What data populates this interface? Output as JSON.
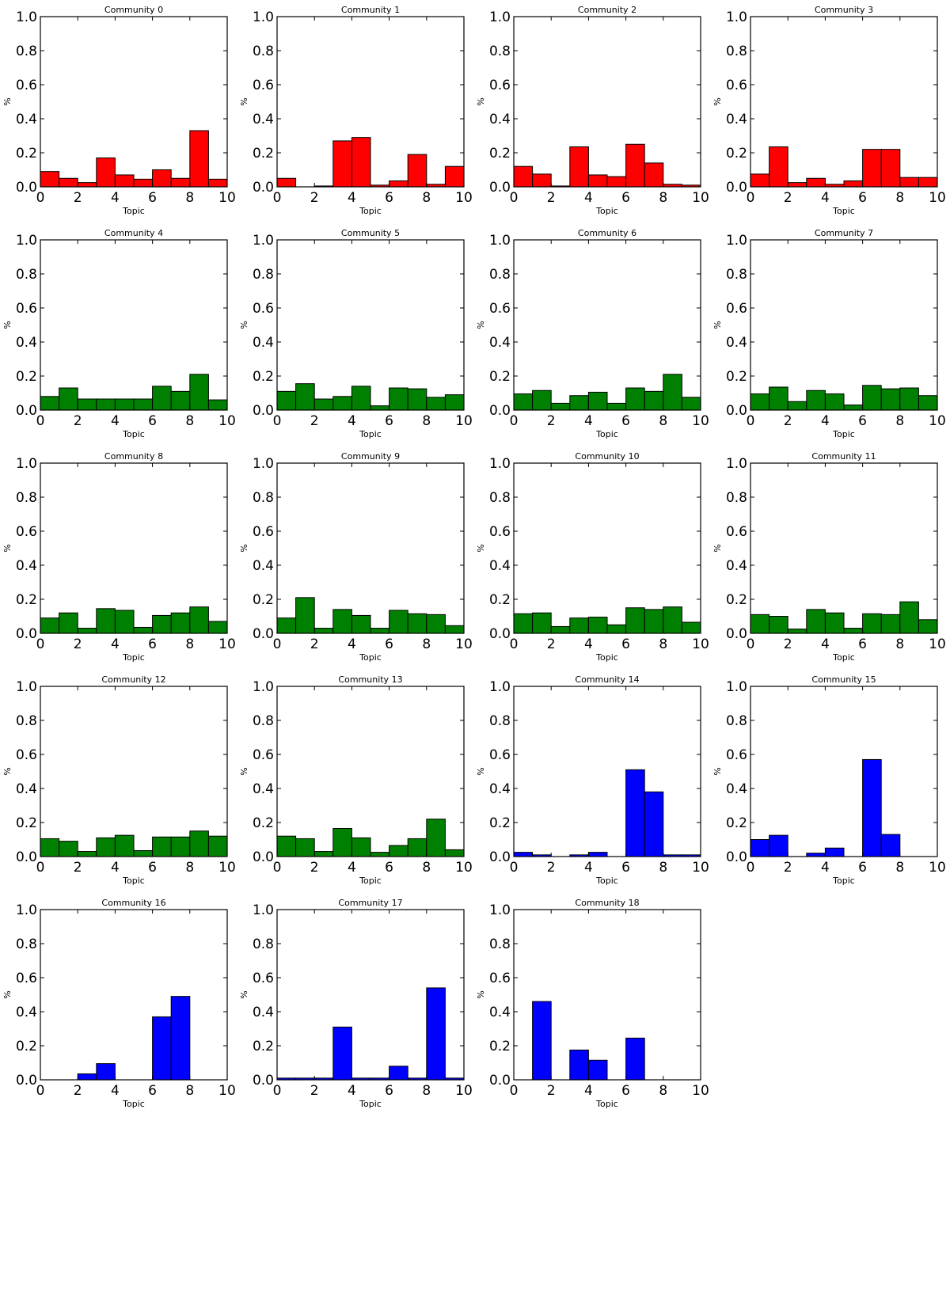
{
  "colors": {
    "red": "#ff0000",
    "green": "#008000",
    "blue": "#0000ff",
    "edge": "#000000"
  },
  "chart_data": [
    {
      "type": "bar",
      "title": "Community 0",
      "xlabel": "Topic",
      "ylabel": "%",
      "xlim": [
        0,
        10
      ],
      "ylim": [
        0,
        1
      ],
      "xticks": [
        "0",
        "2",
        "4",
        "6",
        "8",
        "10"
      ],
      "yticks": [
        "0.0",
        "0.2",
        "0.4",
        "0.6",
        "0.8",
        "1.0"
      ],
      "color": "red",
      "categories": [
        0,
        1,
        2,
        3,
        4,
        5,
        6,
        7,
        8,
        9
      ],
      "values": [
        0.09,
        0.05,
        0.025,
        0.17,
        0.07,
        0.045,
        0.1,
        0.05,
        0.33,
        0.045
      ]
    },
    {
      "type": "bar",
      "title": "Community 1",
      "xlabel": "Topic",
      "ylabel": "%",
      "xlim": [
        0,
        10
      ],
      "ylim": [
        0,
        1
      ],
      "xticks": [
        "0",
        "2",
        "4",
        "6",
        "8",
        "10"
      ],
      "yticks": [
        "0.0",
        "0.2",
        "0.4",
        "0.6",
        "0.8",
        "1.0"
      ],
      "color": "red",
      "categories": [
        0,
        1,
        2,
        3,
        4,
        5,
        6,
        7,
        8,
        9
      ],
      "values": [
        0.05,
        0.0,
        0.005,
        0.27,
        0.29,
        0.01,
        0.035,
        0.19,
        0.015,
        0.12
      ]
    },
    {
      "type": "bar",
      "title": "Community 2",
      "xlabel": "Topic",
      "ylabel": "%",
      "xlim": [
        0,
        10
      ],
      "ylim": [
        0,
        1
      ],
      "xticks": [
        "0",
        "2",
        "4",
        "6",
        "8",
        "10"
      ],
      "yticks": [
        "0.0",
        "0.2",
        "0.4",
        "0.6",
        "0.8",
        "1.0"
      ],
      "color": "red",
      "categories": [
        0,
        1,
        2,
        3,
        4,
        5,
        6,
        7,
        8,
        9
      ],
      "values": [
        0.12,
        0.075,
        0.005,
        0.235,
        0.07,
        0.06,
        0.25,
        0.14,
        0.015,
        0.01
      ]
    },
    {
      "type": "bar",
      "title": "Community 3",
      "xlabel": "Topic",
      "ylabel": "%",
      "xlim": [
        0,
        10
      ],
      "ylim": [
        0,
        1
      ],
      "xticks": [
        "0",
        "2",
        "4",
        "6",
        "8",
        "10"
      ],
      "yticks": [
        "0.0",
        "0.2",
        "0.4",
        "0.6",
        "0.8",
        "1.0"
      ],
      "color": "red",
      "categories": [
        0,
        1,
        2,
        3,
        4,
        5,
        6,
        7,
        8,
        9
      ],
      "values": [
        0.075,
        0.235,
        0.025,
        0.05,
        0.015,
        0.035,
        0.22,
        0.22,
        0.055,
        0.055
      ]
    },
    {
      "type": "bar",
      "title": "Community 4",
      "xlabel": "Topic",
      "ylabel": "%",
      "xlim": [
        0,
        10
      ],
      "ylim": [
        0,
        1
      ],
      "xticks": [
        "0",
        "2",
        "4",
        "6",
        "8",
        "10"
      ],
      "yticks": [
        "0.0",
        "0.2",
        "0.4",
        "0.6",
        "0.8",
        "1.0"
      ],
      "color": "green",
      "categories": [
        0,
        1,
        2,
        3,
        4,
        5,
        6,
        7,
        8,
        9
      ],
      "values": [
        0.08,
        0.13,
        0.065,
        0.065,
        0.065,
        0.065,
        0.14,
        0.11,
        0.21,
        0.06
      ]
    },
    {
      "type": "bar",
      "title": "Community 5",
      "xlabel": "Topic",
      "ylabel": "%",
      "xlim": [
        0,
        10
      ],
      "ylim": [
        0,
        1
      ],
      "xticks": [
        "0",
        "2",
        "4",
        "6",
        "8",
        "10"
      ],
      "yticks": [
        "0.0",
        "0.2",
        "0.4",
        "0.6",
        "0.8",
        "1.0"
      ],
      "color": "green",
      "categories": [
        0,
        1,
        2,
        3,
        4,
        5,
        6,
        7,
        8,
        9
      ],
      "values": [
        0.11,
        0.155,
        0.065,
        0.08,
        0.14,
        0.025,
        0.13,
        0.125,
        0.075,
        0.09
      ]
    },
    {
      "type": "bar",
      "title": "Community 6",
      "xlabel": "Topic",
      "ylabel": "%",
      "xlim": [
        0,
        10
      ],
      "ylim": [
        0,
        1
      ],
      "xticks": [
        "0",
        "2",
        "4",
        "6",
        "8",
        "10"
      ],
      "yticks": [
        "0.0",
        "0.2",
        "0.4",
        "0.6",
        "0.8",
        "1.0"
      ],
      "color": "green",
      "categories": [
        0,
        1,
        2,
        3,
        4,
        5,
        6,
        7,
        8,
        9
      ],
      "values": [
        0.095,
        0.115,
        0.04,
        0.085,
        0.105,
        0.04,
        0.13,
        0.11,
        0.21,
        0.075
      ]
    },
    {
      "type": "bar",
      "title": "Community 7",
      "xlabel": "Topic",
      "ylabel": "%",
      "xlim": [
        0,
        10
      ],
      "ylim": [
        0,
        1
      ],
      "xticks": [
        "0",
        "2",
        "4",
        "6",
        "8",
        "10"
      ],
      "yticks": [
        "0.0",
        "0.2",
        "0.4",
        "0.6",
        "0.8",
        "1.0"
      ],
      "color": "green",
      "categories": [
        0,
        1,
        2,
        3,
        4,
        5,
        6,
        7,
        8,
        9
      ],
      "values": [
        0.095,
        0.135,
        0.05,
        0.115,
        0.095,
        0.03,
        0.145,
        0.125,
        0.13,
        0.085
      ]
    },
    {
      "type": "bar",
      "title": "Community 8",
      "xlabel": "Topic",
      "ylabel": "%",
      "xlim": [
        0,
        10
      ],
      "ylim": [
        0,
        1
      ],
      "xticks": [
        "0",
        "2",
        "4",
        "6",
        "8",
        "10"
      ],
      "yticks": [
        "0.0",
        "0.2",
        "0.4",
        "0.6",
        "0.8",
        "1.0"
      ],
      "color": "green",
      "categories": [
        0,
        1,
        2,
        3,
        4,
        5,
        6,
        7,
        8,
        9
      ],
      "values": [
        0.09,
        0.12,
        0.03,
        0.145,
        0.135,
        0.035,
        0.105,
        0.12,
        0.155,
        0.07
      ]
    },
    {
      "type": "bar",
      "title": "Community 9",
      "xlabel": "Topic",
      "ylabel": "%",
      "xlim": [
        0,
        10
      ],
      "ylim": [
        0,
        1
      ],
      "xticks": [
        "0",
        "2",
        "4",
        "6",
        "8",
        "10"
      ],
      "yticks": [
        "0.0",
        "0.2",
        "0.4",
        "0.6",
        "0.8",
        "1.0"
      ],
      "color": "green",
      "categories": [
        0,
        1,
        2,
        3,
        4,
        5,
        6,
        7,
        8,
        9
      ],
      "values": [
        0.09,
        0.21,
        0.03,
        0.14,
        0.105,
        0.03,
        0.135,
        0.115,
        0.11,
        0.045
      ]
    },
    {
      "type": "bar",
      "title": "Community 10",
      "xlabel": "Topic",
      "ylabel": "%",
      "xlim": [
        0,
        10
      ],
      "ylim": [
        0,
        1
      ],
      "xticks": [
        "0",
        "2",
        "4",
        "6",
        "8",
        "10"
      ],
      "yticks": [
        "0.0",
        "0.2",
        "0.4",
        "0.6",
        "0.8",
        "1.0"
      ],
      "color": "green",
      "categories": [
        0,
        1,
        2,
        3,
        4,
        5,
        6,
        7,
        8,
        9
      ],
      "values": [
        0.115,
        0.12,
        0.04,
        0.09,
        0.095,
        0.05,
        0.15,
        0.14,
        0.155,
        0.065
      ]
    },
    {
      "type": "bar",
      "title": "Community 11",
      "xlabel": "Topic",
      "ylabel": "%",
      "xlim": [
        0,
        10
      ],
      "ylim": [
        0,
        1
      ],
      "xticks": [
        "0",
        "2",
        "4",
        "6",
        "8",
        "10"
      ],
      "yticks": [
        "0.0",
        "0.2",
        "0.4",
        "0.6",
        "0.8",
        "1.0"
      ],
      "color": "green",
      "categories": [
        0,
        1,
        2,
        3,
        4,
        5,
        6,
        7,
        8,
        9
      ],
      "values": [
        0.11,
        0.1,
        0.025,
        0.14,
        0.12,
        0.03,
        0.115,
        0.11,
        0.185,
        0.08
      ]
    },
    {
      "type": "bar",
      "title": "Community 12",
      "xlabel": "Topic",
      "ylabel": "%",
      "xlim": [
        0,
        10
      ],
      "ylim": [
        0,
        1
      ],
      "xticks": [
        "0",
        "2",
        "4",
        "6",
        "8",
        "10"
      ],
      "yticks": [
        "0.0",
        "0.2",
        "0.4",
        "0.6",
        "0.8",
        "1.0"
      ],
      "color": "green",
      "categories": [
        0,
        1,
        2,
        3,
        4,
        5,
        6,
        7,
        8,
        9
      ],
      "values": [
        0.105,
        0.09,
        0.03,
        0.11,
        0.125,
        0.035,
        0.115,
        0.115,
        0.15,
        0.12
      ]
    },
    {
      "type": "bar",
      "title": "Community 13",
      "xlabel": "Topic",
      "ylabel": "%",
      "xlim": [
        0,
        10
      ],
      "ylim": [
        0,
        1
      ],
      "xticks": [
        "0",
        "2",
        "4",
        "6",
        "8",
        "10"
      ],
      "yticks": [
        "0.0",
        "0.2",
        "0.4",
        "0.6",
        "0.8",
        "1.0"
      ],
      "color": "green",
      "categories": [
        0,
        1,
        2,
        3,
        4,
        5,
        6,
        7,
        8,
        9
      ],
      "values": [
        0.12,
        0.105,
        0.03,
        0.165,
        0.11,
        0.025,
        0.065,
        0.105,
        0.22,
        0.04
      ]
    },
    {
      "type": "bar",
      "title": "Community 14",
      "xlabel": "Topic",
      "ylabel": "%",
      "xlim": [
        0,
        10
      ],
      "ylim": [
        0,
        1
      ],
      "xticks": [
        "0",
        "2",
        "4",
        "6",
        "8",
        "10"
      ],
      "yticks": [
        "0.0",
        "0.2",
        "0.4",
        "0.6",
        "0.8",
        "1.0"
      ],
      "color": "blue",
      "categories": [
        0,
        1,
        2,
        3,
        4,
        5,
        6,
        7,
        8,
        9
      ],
      "values": [
        0.025,
        0.01,
        0.0,
        0.01,
        0.025,
        0.0,
        0.51,
        0.38,
        0.01,
        0.01
      ]
    },
    {
      "type": "bar",
      "title": "Community 15",
      "xlabel": "Topic",
      "ylabel": "%",
      "xlim": [
        0,
        10
      ],
      "ylim": [
        0,
        1
      ],
      "xticks": [
        "0",
        "2",
        "4",
        "6",
        "8",
        "10"
      ],
      "yticks": [
        "0.0",
        "0.2",
        "0.4",
        "0.6",
        "0.8",
        "1.0"
      ],
      "color": "blue",
      "categories": [
        0,
        1,
        2,
        3,
        4,
        5,
        6,
        7,
        8,
        9
      ],
      "values": [
        0.1,
        0.125,
        0.0,
        0.02,
        0.05,
        0.0,
        0.57,
        0.13,
        0.0,
        0.0
      ]
    },
    {
      "type": "bar",
      "title": "Community 16",
      "xlabel": "Topic",
      "ylabel": "%",
      "xlim": [
        0,
        10
      ],
      "ylim": [
        0,
        1
      ],
      "xticks": [
        "0",
        "2",
        "4",
        "6",
        "8",
        "10"
      ],
      "yticks": [
        "0.0",
        "0.2",
        "0.4",
        "0.6",
        "0.8",
        "1.0"
      ],
      "color": "blue",
      "categories": [
        0,
        1,
        2,
        3,
        4,
        5,
        6,
        7,
        8,
        9
      ],
      "values": [
        0.0,
        0.0,
        0.035,
        0.095,
        0.0,
        0.0,
        0.37,
        0.49,
        0.0,
        0.0
      ]
    },
    {
      "type": "bar",
      "title": "Community 17",
      "xlabel": "Topic",
      "ylabel": "%",
      "xlim": [
        0,
        10
      ],
      "ylim": [
        0,
        1
      ],
      "xticks": [
        "0",
        "2",
        "4",
        "6",
        "8",
        "10"
      ],
      "yticks": [
        "0.0",
        "0.2",
        "0.4",
        "0.6",
        "0.8",
        "1.0"
      ],
      "color": "blue",
      "categories": [
        0,
        1,
        2,
        3,
        4,
        5,
        6,
        7,
        8,
        9
      ],
      "values": [
        0.01,
        0.01,
        0.01,
        0.31,
        0.01,
        0.01,
        0.08,
        0.01,
        0.54,
        0.01
      ]
    },
    {
      "type": "bar",
      "title": "Community 18",
      "xlabel": "Topic",
      "ylabel": "%",
      "xlim": [
        0,
        10
      ],
      "ylim": [
        0,
        1
      ],
      "xticks": [
        "0",
        "2",
        "4",
        "6",
        "8",
        "10"
      ],
      "yticks": [
        "0.0",
        "0.2",
        "0.4",
        "0.6",
        "0.8",
        "1.0"
      ],
      "color": "blue",
      "categories": [
        0,
        1,
        2,
        3,
        4,
        5,
        6,
        7,
        8,
        9
      ],
      "values": [
        0.0,
        0.46,
        0.0,
        0.175,
        0.115,
        0.0,
        0.245,
        0.0,
        0.0,
        0.0
      ]
    }
  ]
}
